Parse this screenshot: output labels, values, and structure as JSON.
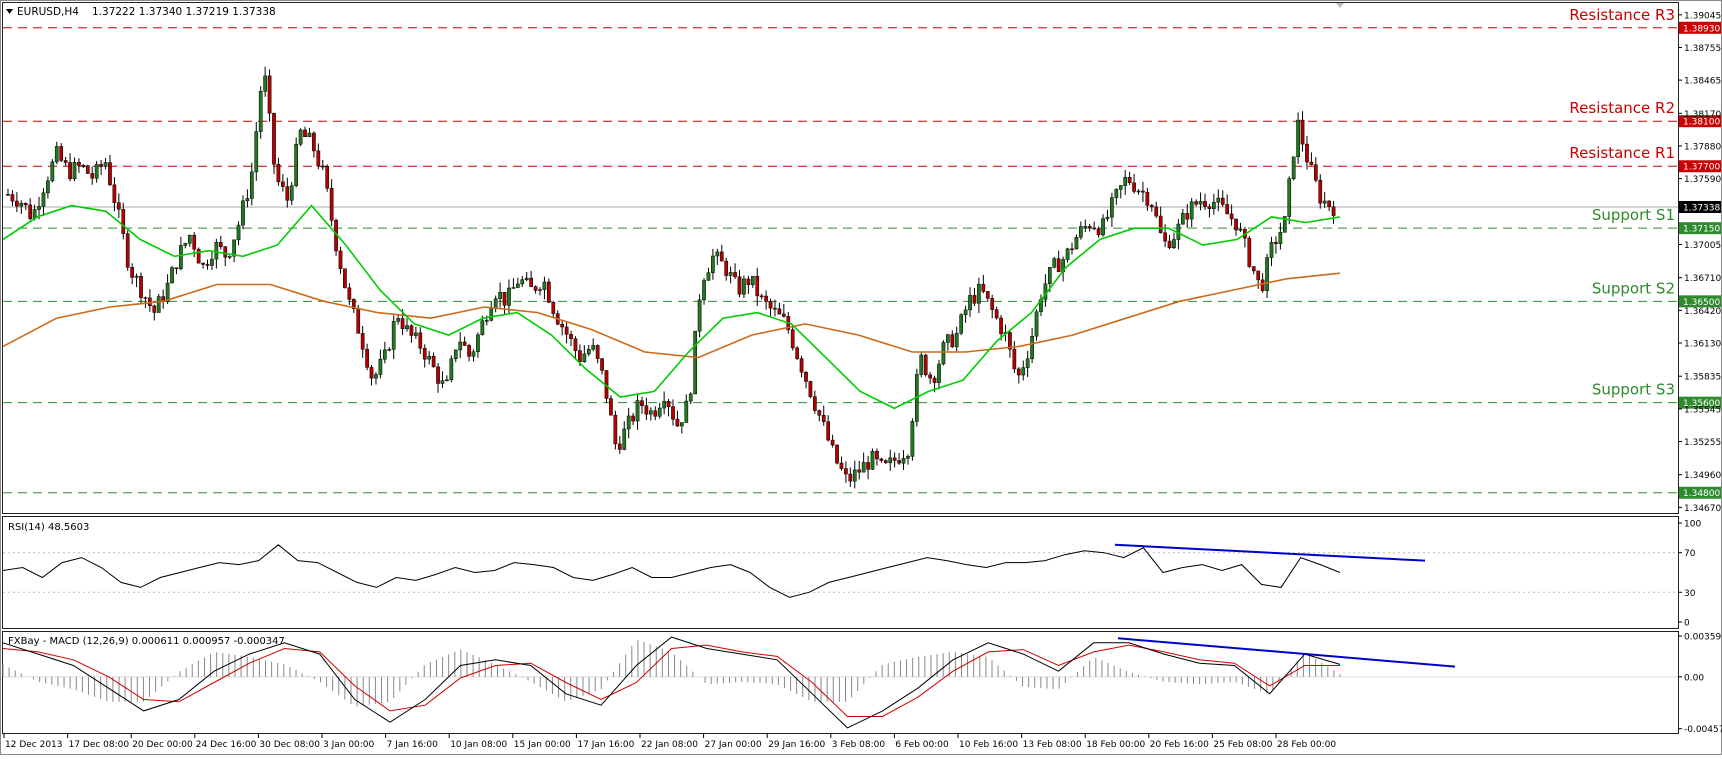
{
  "chart_header": {
    "symbol": "EURUSD,H4",
    "ohlc": "1.37222 1.37340 1.37219 1.37338"
  },
  "colors": {
    "resistance": "#cc0000",
    "support": "#2e8b2e",
    "candle_up": "#1f7a1f",
    "candle_down": "#b30000",
    "ma_fast": "#00cc00",
    "ma_slow": "#cc6a1a",
    "trendline": "#0000cc",
    "current_price": "#000000"
  },
  "chart_data": [
    {
      "type": "candlestick",
      "title": "EURUSD,H4  1.37222 1.37340 1.37219 1.37338",
      "ylim": [
        1.3462,
        1.3915
      ],
      "y_ticks": [
        "1.39045",
        "1.38755",
        "1.38465",
        "1.38170",
        "1.37880",
        "1.37590",
        "1.37005",
        "1.36710",
        "1.36420",
        "1.36130",
        "1.35835",
        "1.35545",
        "1.35255",
        "1.34960",
        "1.34670"
      ],
      "x_ticks": [
        "12 Dec 2013",
        "17 Dec 08:00",
        "20 Dec 00:00",
        "24 Dec 16:00",
        "30 Dec 08:00",
        "3 Jan 00:00",
        "7 Jan 16:00",
        "10 Jan 08:00",
        "15 Jan 00:00",
        "17 Jan 16:00",
        "22 Jan 08:00",
        "27 Jan 00:00",
        "29 Jan 16:00",
        "3 Feb 08:00",
        "6 Feb 00:00",
        "10 Feb 16:00",
        "13 Feb 08:00",
        "18 Feb 00:00",
        "20 Feb 16:00",
        "25 Feb 08:00",
        "28 Feb 00:00"
      ],
      "current_price": "1.37338",
      "levels": [
        {
          "name": "Resistance R3",
          "value": 1.3893,
          "label": "1.38930",
          "kind": "resistance"
        },
        {
          "name": "Resistance R2",
          "value": 1.381,
          "label": "1.38100",
          "kind": "resistance"
        },
        {
          "name": "Resistance R1",
          "value": 1.377,
          "label": "1.37700",
          "kind": "resistance"
        },
        {
          "name": "Support S1",
          "value": 1.3715,
          "label": "1.37150",
          "kind": "support"
        },
        {
          "name": "Support S2",
          "value": 1.365,
          "label": "1.36500",
          "kind": "support"
        },
        {
          "name": "Support S3",
          "value": 1.356,
          "label": "1.35600",
          "kind": "support"
        },
        {
          "name": "",
          "value": 1.348,
          "label": "1.34800",
          "kind": "support"
        }
      ],
      "price_path": [
        1.3745,
        1.374,
        1.3725,
        1.3755,
        1.378,
        1.3765,
        1.377,
        1.376,
        1.3775,
        1.373,
        1.368,
        1.366,
        1.364,
        1.366,
        1.369,
        1.371,
        1.368,
        1.37,
        1.369,
        1.372,
        1.376,
        1.386,
        1.376,
        1.374,
        1.38,
        1.379,
        1.376,
        1.37,
        1.365,
        1.362,
        1.358,
        1.36,
        1.364,
        1.362,
        1.361,
        1.359,
        1.357,
        1.362,
        1.36,
        1.363,
        1.366,
        1.365,
        1.367,
        1.366,
        1.367,
        1.364,
        1.362,
        1.36,
        1.361,
        1.358,
        1.352,
        1.354,
        1.356,
        1.355,
        1.357,
        1.354,
        1.356,
        1.367,
        1.369,
        1.368,
        1.366,
        1.367,
        1.365,
        1.364,
        1.363,
        1.36,
        1.357,
        1.354,
        1.351,
        1.349,
        1.35,
        1.351,
        1.35,
        1.351,
        1.352,
        1.36,
        1.358,
        1.361,
        1.362,
        1.365,
        1.366,
        1.364,
        1.362,
        1.358,
        1.361,
        1.366,
        1.368,
        1.369,
        1.371,
        1.372,
        1.3715,
        1.374,
        1.376,
        1.375,
        1.374,
        1.37,
        1.371,
        1.373,
        1.374,
        1.374,
        1.373,
        1.372,
        1.369,
        1.366,
        1.37,
        1.372,
        1.381,
        1.377,
        1.374,
        1.3734
      ],
      "ma_fast_path": [
        1.3705,
        1.3725,
        1.3735,
        1.373,
        1.3705,
        1.369,
        1.3695,
        1.369,
        1.37,
        1.3735,
        1.37,
        1.366,
        1.363,
        1.362,
        1.3635,
        1.364,
        1.362,
        1.359,
        1.3565,
        1.357,
        1.3605,
        1.3635,
        1.364,
        1.363,
        1.36,
        1.357,
        1.3555,
        1.357,
        1.358,
        1.3615,
        1.364,
        1.368,
        1.3705,
        1.3715,
        1.3715,
        1.37,
        1.3705,
        1.3725,
        1.372,
        1.3725
      ],
      "ma_slow_path": [
        1.361,
        1.3635,
        1.3645,
        1.365,
        1.3665,
        1.3665,
        1.365,
        1.364,
        1.3635,
        1.3645,
        1.364,
        1.3625,
        1.3605,
        1.36,
        1.362,
        1.363,
        1.362,
        1.3605,
        1.3605,
        1.361,
        1.362,
        1.3635,
        1.365,
        1.366,
        1.367,
        1.3675
      ]
    },
    {
      "type": "line",
      "title": "RSI(14) 48.5603",
      "ylim": [
        0,
        100
      ],
      "y_ticks": [
        "100",
        "70",
        "30",
        "0"
      ],
      "levels": [
        70,
        30
      ],
      "values": [
        52,
        55,
        45,
        60,
        65,
        55,
        40,
        35,
        45,
        50,
        55,
        60,
        58,
        62,
        78,
        62,
        60,
        50,
        40,
        35,
        45,
        42,
        48,
        55,
        50,
        52,
        60,
        58,
        55,
        45,
        42,
        48,
        55,
        45,
        45,
        50,
        55,
        58,
        50,
        35,
        25,
        30,
        40,
        45,
        50,
        55,
        60,
        65,
        62,
        58,
        55,
        60,
        60,
        62,
        68,
        72,
        70,
        65,
        75,
        50,
        55,
        58,
        52,
        58,
        38,
        35,
        65,
        58,
        50
      ],
      "trendline": [
        78,
        62
      ]
    },
    {
      "type": "line",
      "title": "FXBay - MACD (12,26,9) 0.000611 0.000957 -0.000347",
      "ylim": [
        -0.0046,
        0.0036
      ],
      "y_ticks": [
        "0.003591",
        "0.00",
        "-0.004574"
      ],
      "macd": [
        0.003,
        0.002,
        0.001,
        -0.001,
        -0.003,
        -0.002,
        0.0005,
        0.002,
        0.003,
        0.002,
        -0.002,
        -0.004,
        -0.002,
        0.001,
        0.0015,
        0.001,
        -0.0015,
        -0.0025,
        0.001,
        0.0035,
        0.0025,
        0.002,
        0.0015,
        -0.0015,
        -0.0045,
        -0.003,
        -0.001,
        0.0015,
        0.003,
        0.002,
        0.0005,
        0.003,
        0.003,
        0.002,
        0.0012,
        0.001,
        -0.0015,
        0.002,
        0.0011
      ],
      "signal": [
        0.0025,
        0.0022,
        0.0015,
        0.0,
        -0.002,
        -0.0022,
        -0.0005,
        0.0012,
        0.0025,
        0.0022,
        -0.0008,
        -0.003,
        -0.0025,
        -0.0001,
        0.001,
        0.0012,
        -0.0005,
        -0.002,
        -0.0005,
        0.0025,
        0.0028,
        0.0022,
        0.0018,
        -0.0005,
        -0.0035,
        -0.0035,
        -0.0018,
        0.0005,
        0.0022,
        0.0024,
        0.001,
        0.0022,
        0.0028,
        0.0022,
        0.0015,
        0.0012,
        -0.0008,
        0.001,
        0.001
      ],
      "trendline": [
        0.0034,
        0.0009
      ]
    }
  ]
}
